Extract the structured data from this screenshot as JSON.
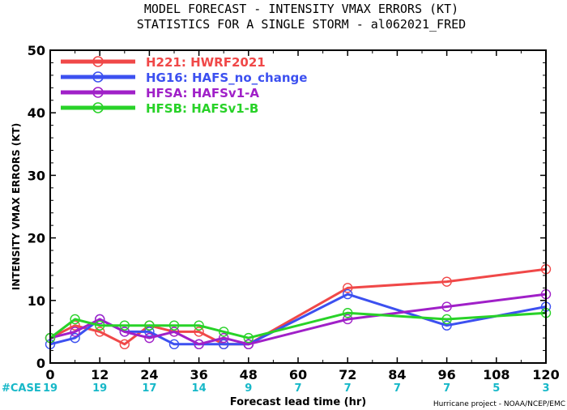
{
  "chart_data": {
    "type": "line",
    "title": "MODEL FORECAST - INTENSITY VMAX ERRORS (KT)",
    "subtitle": "STATISTICS FOR A SINGLE STORM - al062021_FRED",
    "xlabel": "Forecast lead time (hr)",
    "ylabel": "INTENSITY VMAX ERRORS (KT)",
    "xlim": [
      0,
      120
    ],
    "ylim": [
      0,
      50
    ],
    "xticks": [
      0,
      12,
      24,
      36,
      48,
      60,
      72,
      84,
      96,
      108,
      120
    ],
    "yticks": [
      0,
      10,
      20,
      30,
      40,
      50
    ],
    "grid": false,
    "legend_position": "top-left",
    "case_label": "#CASE",
    "case_counts": [
      {
        "x": 0,
        "n": "19"
      },
      {
        "x": 12,
        "n": "19"
      },
      {
        "x": 24,
        "n": "17"
      },
      {
        "x": 36,
        "n": "14"
      },
      {
        "x": 48,
        "n": "9"
      },
      {
        "x": 60,
        "n": "7"
      },
      {
        "x": 72,
        "n": "7"
      },
      {
        "x": 84,
        "n": "7"
      },
      {
        "x": 96,
        "n": "7"
      },
      {
        "x": 108,
        "n": "5"
      },
      {
        "x": 120,
        "n": "3"
      }
    ],
    "credit": "Hurricane project - NOAA/NCEP/EMC",
    "series": [
      {
        "name": "H221: HWRF2021",
        "color": "#f04848",
        "points": [
          [
            0,
            4
          ],
          [
            6,
            6
          ],
          [
            12,
            5
          ],
          [
            18,
            3
          ],
          [
            24,
            6
          ],
          [
            30,
            5
          ],
          [
            36,
            5
          ],
          [
            42,
            3
          ],
          [
            48,
            3
          ],
          [
            72,
            12
          ],
          [
            96,
            13
          ],
          [
            120,
            15
          ]
        ]
      },
      {
        "name": "HG16: HAFS_no_change",
        "color": "#3c50f0",
        "points": [
          [
            0,
            3
          ],
          [
            6,
            4
          ],
          [
            12,
            7
          ],
          [
            18,
            5
          ],
          [
            24,
            5
          ],
          [
            30,
            3
          ],
          [
            36,
            3
          ],
          [
            42,
            3
          ],
          [
            48,
            3
          ],
          [
            72,
            11
          ],
          [
            96,
            6
          ],
          [
            120,
            9
          ]
        ]
      },
      {
        "name": "HFSA: HAFSv1-A",
        "color": "#a020c8",
        "points": [
          [
            0,
            4
          ],
          [
            6,
            5
          ],
          [
            12,
            7
          ],
          [
            18,
            5
          ],
          [
            24,
            4
          ],
          [
            30,
            5
          ],
          [
            36,
            3
          ],
          [
            42,
            4
          ],
          [
            48,
            3
          ],
          [
            72,
            7
          ],
          [
            96,
            9
          ],
          [
            120,
            11
          ]
        ]
      },
      {
        "name": "HFSB: HAFSv1-B",
        "color": "#28d228",
        "points": [
          [
            0,
            4
          ],
          [
            6,
            7
          ],
          [
            12,
            6
          ],
          [
            18,
            6
          ],
          [
            24,
            6
          ],
          [
            30,
            6
          ],
          [
            36,
            6
          ],
          [
            42,
            5
          ],
          [
            48,
            4
          ],
          [
            72,
            8
          ],
          [
            96,
            7
          ],
          [
            120,
            8
          ]
        ]
      }
    ]
  }
}
